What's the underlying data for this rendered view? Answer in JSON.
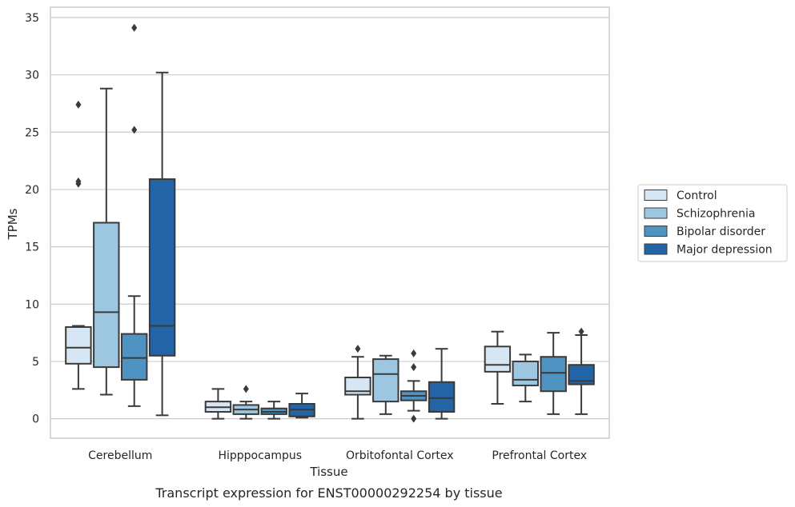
{
  "caption": "Transcript expression for ENST00000292254 by tissue",
  "colors": {
    "Control": "#d6e6f4",
    "Schizophrenia": "#9dc7e0",
    "Bipolar disorder": "#4f93c2",
    "Major depression": "#2264a6",
    "edge": "#3a3a3a",
    "grid": "#cccccc",
    "frame": "#c8c8c8"
  },
  "chart_data": {
    "type": "box",
    "xlabel": "Tissue",
    "ylabel": "TPMs",
    "ylim": [
      -1.7,
      35.9
    ],
    "yticks": [
      0,
      5,
      10,
      15,
      20,
      25,
      30,
      35
    ],
    "grid": true,
    "legend_position": "right",
    "categories": [
      "Cerebellum",
      "Hipppocampus",
      "Orbitofontal Cortex",
      "Prefrontal Cortex"
    ],
    "series": [
      {
        "name": "Control",
        "boxes": [
          {
            "whislo": 2.6,
            "q1": 4.8,
            "med": 6.2,
            "q3": 8.0,
            "whishi": 8.1,
            "fliers": [
              27.4,
              20.7,
              20.5
            ]
          },
          {
            "whislo": 0.0,
            "q1": 0.6,
            "med": 1.0,
            "q3": 1.5,
            "whishi": 2.6,
            "fliers": []
          },
          {
            "whislo": 0.0,
            "q1": 2.1,
            "med": 2.4,
            "q3": 3.6,
            "whishi": 5.4,
            "fliers": [
              6.1
            ]
          },
          {
            "whislo": 1.3,
            "q1": 4.1,
            "med": 4.7,
            "q3": 6.3,
            "whishi": 7.6,
            "fliers": []
          }
        ]
      },
      {
        "name": "Schizophrenia",
        "boxes": [
          {
            "whislo": 2.1,
            "q1": 4.5,
            "med": 9.3,
            "q3": 17.1,
            "whishi": 28.8,
            "fliers": []
          },
          {
            "whislo": 0.0,
            "q1": 0.4,
            "med": 0.8,
            "q3": 1.2,
            "whishi": 1.5,
            "fliers": [
              2.6
            ]
          },
          {
            "whislo": 0.4,
            "q1": 1.5,
            "med": 3.9,
            "q3": 5.2,
            "whishi": 5.5,
            "fliers": []
          },
          {
            "whislo": 1.5,
            "q1": 2.9,
            "med": 3.4,
            "q3": 5.0,
            "whishi": 5.6,
            "fliers": []
          }
        ]
      },
      {
        "name": "Bipolar disorder",
        "boxes": [
          {
            "whislo": 1.1,
            "q1": 3.4,
            "med": 5.3,
            "q3": 7.4,
            "whishi": 10.7,
            "fliers": [
              34.1,
              25.2
            ]
          },
          {
            "whislo": 0.0,
            "q1": 0.4,
            "med": 0.6,
            "q3": 0.9,
            "whishi": 1.5,
            "fliers": []
          },
          {
            "whislo": 0.7,
            "q1": 1.6,
            "med": 2.0,
            "q3": 2.4,
            "whishi": 3.3,
            "fliers": [
              5.7,
              4.5,
              0.0
            ]
          },
          {
            "whislo": 0.4,
            "q1": 2.4,
            "med": 4.0,
            "q3": 5.4,
            "whishi": 7.5,
            "fliers": []
          }
        ]
      },
      {
        "name": "Major depression",
        "boxes": [
          {
            "whislo": 0.3,
            "q1": 5.5,
            "med": 8.1,
            "q3": 20.9,
            "whishi": 30.2,
            "fliers": []
          },
          {
            "whislo": 0.1,
            "q1": 0.2,
            "med": 0.8,
            "q3": 1.3,
            "whishi": 2.2,
            "fliers": []
          },
          {
            "whislo": 0.0,
            "q1": 0.6,
            "med": 1.8,
            "q3": 3.2,
            "whishi": 6.1,
            "fliers": []
          },
          {
            "whislo": 0.4,
            "q1": 3.0,
            "med": 3.3,
            "q3": 4.7,
            "whishi": 7.3,
            "fliers": [
              7.6
            ]
          }
        ]
      }
    ]
  }
}
